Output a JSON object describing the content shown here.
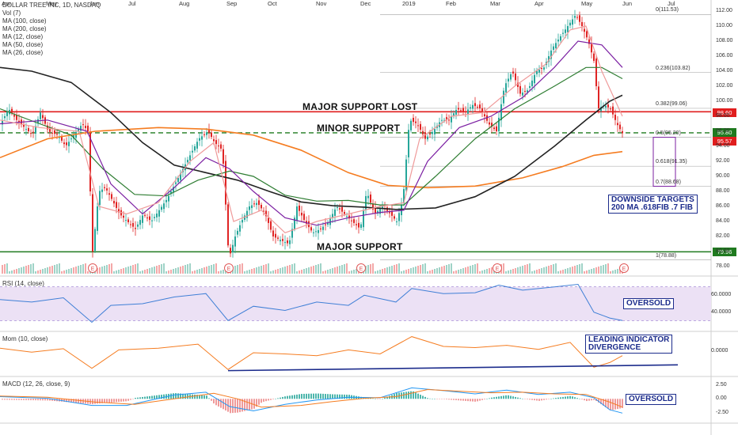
{
  "legend": {
    "title": "DOLLAR TREE INC, 1D, NASDAQ",
    "vol": "Vol (7)",
    "ma100": "MA (100, close)",
    "ma200": "MA (200, close)",
    "ma12": "MA (12, close)",
    "ma50": "MA (50, close)",
    "ma26": "MA (26, close)"
  },
  "pane_labels": {
    "rsi": "RSI (14, close)",
    "mom": "Mom (10, close)",
    "macd": "MACD (12, 26, close, 9)"
  },
  "annotations": {
    "major_support_lost": "MAJOR SUPPORT LOST",
    "minor_support": "MINOR SUPPORT",
    "major_support": "MAJOR SUPPORT",
    "downside_line1": "DOWNSIDE TARGETS",
    "downside_line2": "200 MA .618FIB .7 FIB",
    "rsi_oversold": "OVERSOLD",
    "mom_line1": "LEADING INDICATOR",
    "mom_line2": "DIVERGENCE",
    "macd_oversold": "OVERSOLD"
  },
  "price_tags": [
    {
      "value": "98.60",
      "color": "#e01e1e"
    },
    {
      "value": "95.80",
      "color": "#1f7a1f"
    },
    {
      "value": "95.57",
      "color": "#e01e1e"
    },
    {
      "value": "79.96",
      "color": "#1f7a1f"
    }
  ],
  "fib_levels": [
    {
      "label": "0(111.53)",
      "value": 111.53
    },
    {
      "label": "0.236(103.82)",
      "value": 103.82
    },
    {
      "label": "0.382(99.06)",
      "value": 99.06
    },
    {
      "label": "0.5(95.20)",
      "value": 95.2
    },
    {
      "label": "0.618(91.35)",
      "value": 91.35
    },
    {
      "label": "0.7(88.68)",
      "value": 88.68
    },
    {
      "label": "1(78.88)",
      "value": 78.88
    }
  ],
  "price_axis": [
    "112.00",
    "110.00",
    "108.00",
    "106.00",
    "104.00",
    "102.00",
    "100.00",
    "98.00",
    "96.00",
    "94.00",
    "92.00",
    "90.00",
    "88.00",
    "86.00",
    "84.00",
    "82.00",
    "80.00",
    "78.00"
  ],
  "rsi_axis": [
    "60.0000",
    "40.0000"
  ],
  "mom_axis": [
    "0.0000"
  ],
  "macd_axis": [
    "2.50",
    "0.00",
    "-2.50"
  ],
  "x_labels": [
    "Apr",
    "May",
    "Jun",
    "Jul",
    "Aug",
    "Sep",
    "Oct",
    "Nov",
    "Dec",
    "2019",
    "Feb",
    "Mar",
    "Apr",
    "May",
    "Jun",
    "Jul"
  ],
  "earnings_marker": "E",
  "chart_data": {
    "type": "candlestick",
    "symbol": "DOLLAR TREE INC",
    "interval": "1D",
    "exchange": "NASDAQ",
    "ylim": [
      77,
      113
    ],
    "horizontal_levels": {
      "major_support_lost": 98.6,
      "minor_support": 95.8,
      "major_support": 79.96
    },
    "price_path": [
      [
        0,
        97
      ],
      [
        10,
        99
      ],
      [
        20,
        97.5
      ],
      [
        30,
        96.5
      ],
      [
        40,
        95.5
      ],
      [
        50,
        98.5
      ],
      [
        60,
        96
      ],
      [
        72,
        95.5
      ],
      [
        82,
        94
      ],
      [
        92,
        95.5
      ],
      [
        103,
        97
      ],
      [
        110,
        96
      ],
      [
        116,
        80
      ],
      [
        124,
        88
      ],
      [
        132,
        88.5
      ],
      [
        140,
        87
      ],
      [
        150,
        85
      ],
      [
        160,
        84
      ],
      [
        170,
        83
      ],
      [
        180,
        85
      ],
      [
        190,
        84
      ],
      [
        200,
        85.5
      ],
      [
        210,
        87
      ],
      [
        220,
        89
      ],
      [
        230,
        91
      ],
      [
        240,
        93
      ],
      [
        250,
        95
      ],
      [
        262,
        96
      ],
      [
        270,
        94.5
      ],
      [
        280,
        93.5
      ],
      [
        288,
        79
      ],
      [
        296,
        82
      ],
      [
        304,
        84
      ],
      [
        314,
        86
      ],
      [
        324,
        86.5
      ],
      [
        334,
        85
      ],
      [
        344,
        82
      ],
      [
        354,
        81.5
      ],
      [
        364,
        81
      ],
      [
        374,
        86
      ],
      [
        384,
        84
      ],
      [
        394,
        82.5
      ],
      [
        404,
        83
      ],
      [
        414,
        84
      ],
      [
        424,
        86
      ],
      [
        434,
        85
      ],
      [
        444,
        84
      ],
      [
        454,
        83
      ],
      [
        462,
        88
      ],
      [
        472,
        85
      ],
      [
        482,
        86
      ],
      [
        492,
        85
      ],
      [
        500,
        84
      ],
      [
        508,
        87
      ],
      [
        516,
        97.5
      ],
      [
        526,
        97
      ],
      [
        536,
        95
      ],
      [
        546,
        96
      ],
      [
        556,
        97.5
      ],
      [
        566,
        97.5
      ],
      [
        576,
        99
      ],
      [
        586,
        98.5
      ],
      [
        596,
        99.5
      ],
      [
        606,
        99
      ],
      [
        616,
        97
      ],
      [
        626,
        96
      ],
      [
        636,
        102
      ],
      [
        646,
        104
      ],
      [
        656,
        101
      ],
      [
        666,
        101.5
      ],
      [
        676,
        104
      ],
      [
        686,
        104.5
      ],
      [
        696,
        107
      ],
      [
        706,
        108.5
      ],
      [
        716,
        110
      ],
      [
        726,
        111.5
      ],
      [
        734,
        110
      ],
      [
        742,
        108
      ],
      [
        750,
        105
      ],
      [
        754,
        99
      ],
      [
        762,
        99.5
      ],
      [
        770,
        99
      ],
      [
        778,
        97
      ],
      [
        786,
        95.57
      ]
    ],
    "moving_averages": [
      {
        "name": "MA (200, close)",
        "color": "#f57c20",
        "points": [
          [
            0,
            92.5
          ],
          [
            60,
            95
          ],
          [
            120,
            96
          ],
          [
            200,
            96.5
          ],
          [
            260,
            96.3
          ],
          [
            320,
            95.5
          ],
          [
            380,
            93.5
          ],
          [
            440,
            90.5
          ],
          [
            490,
            88.8
          ],
          [
            540,
            88.5
          ],
          [
            600,
            88.7
          ],
          [
            660,
            89.8
          ],
          [
            710,
            91.3
          ],
          [
            750,
            92.8
          ],
          [
            786,
            93.3
          ]
        ]
      },
      {
        "name": "MA (100, close)",
        "color": "#222222",
        "points": [
          [
            0,
            104.5
          ],
          [
            40,
            104
          ],
          [
            90,
            102.5
          ],
          [
            140,
            98.5
          ],
          [
            180,
            94.5
          ],
          [
            220,
            91.5
          ],
          [
            260,
            90.5
          ],
          [
            300,
            89.5
          ],
          [
            340,
            88
          ],
          [
            380,
            86.6
          ],
          [
            420,
            86.1
          ],
          [
            460,
            85.9
          ],
          [
            500,
            85.6
          ],
          [
            550,
            85.8
          ],
          [
            600,
            87.3
          ],
          [
            650,
            90
          ],
          [
            700,
            94
          ],
          [
            740,
            97.5
          ],
          [
            770,
            100
          ],
          [
            786,
            100.8
          ]
        ]
      },
      {
        "name": "MA (50, close)",
        "color": "#2e7d32",
        "points": [
          [
            0,
            99
          ],
          [
            50,
            97
          ],
          [
            90,
            95.5
          ],
          [
            130,
            91
          ],
          [
            170,
            87.6
          ],
          [
            210,
            87.4
          ],
          [
            250,
            89.5
          ],
          [
            290,
            90.7
          ],
          [
            320,
            90
          ],
          [
            360,
            87.5
          ],
          [
            400,
            86.7
          ],
          [
            440,
            86.8
          ],
          [
            480,
            86.2
          ],
          [
            510,
            86.2
          ],
          [
            550,
            90
          ],
          [
            600,
            95
          ],
          [
            650,
            99
          ],
          [
            700,
            102
          ],
          [
            740,
            104.5
          ],
          [
            760,
            104.5
          ],
          [
            786,
            103
          ]
        ]
      },
      {
        "name": "MA (26, close)",
        "color": "#7b1fa2",
        "points": [
          [
            0,
            97
          ],
          [
            60,
            97.5
          ],
          [
            110,
            96
          ],
          [
            140,
            89
          ],
          [
            180,
            85
          ],
          [
            220,
            88.5
          ],
          [
            260,
            92.5
          ],
          [
            290,
            91
          ],
          [
            320,
            88
          ],
          [
            360,
            84.5
          ],
          [
            400,
            83.5
          ],
          [
            440,
            84.5
          ],
          [
            480,
            85.2
          ],
          [
            510,
            85.5
          ],
          [
            540,
            92
          ],
          [
            580,
            96.5
          ],
          [
            620,
            98
          ],
          [
            660,
            100.5
          ],
          [
            700,
            104.5
          ],
          [
            730,
            108
          ],
          [
            760,
            107.5
          ],
          [
            786,
            104.5
          ]
        ]
      },
      {
        "name": "MA (12, close)",
        "color": "#ef9a9a",
        "points": [
          [
            0,
            97.5
          ],
          [
            50,
            96.5
          ],
          [
            100,
            96
          ],
          [
            125,
            86
          ],
          [
            160,
            85
          ],
          [
            200,
            86.5
          ],
          [
            240,
            92
          ],
          [
            270,
            94.5
          ],
          [
            295,
            84
          ],
          [
            330,
            85.5
          ],
          [
            360,
            82.5
          ],
          [
            400,
            84
          ],
          [
            440,
            85
          ],
          [
            480,
            86
          ],
          [
            510,
            86.5
          ],
          [
            530,
            95
          ],
          [
            570,
            98
          ],
          [
            610,
            98.5
          ],
          [
            650,
            102
          ],
          [
            690,
            105
          ],
          [
            720,
            109.5
          ],
          [
            740,
            110
          ],
          [
            760,
            104
          ],
          [
            786,
            98
          ]
        ]
      }
    ],
    "rsi": {
      "period": 14,
      "ylim": [
        20,
        80
      ],
      "band": [
        30,
        70
      ],
      "points": [
        [
          0,
          55
        ],
        [
          40,
          52
        ],
        [
          80,
          57
        ],
        [
          116,
          28
        ],
        [
          140,
          48
        ],
        [
          180,
          50
        ],
        [
          220,
          58
        ],
        [
          260,
          62
        ],
        [
          288,
          30
        ],
        [
          320,
          47
        ],
        [
          360,
          42
        ],
        [
          400,
          52
        ],
        [
          440,
          48
        ],
        [
          460,
          60
        ],
        [
          500,
          52
        ],
        [
          520,
          68
        ],
        [
          560,
          62
        ],
        [
          600,
          63
        ],
        [
          630,
          72
        ],
        [
          660,
          66
        ],
        [
          700,
          70
        ],
        [
          730,
          73
        ],
        [
          750,
          40
        ],
        [
          770,
          33
        ],
        [
          786,
          30
        ]
      ]
    },
    "momentum": {
      "period": 10,
      "points": [
        [
          0,
          0.5
        ],
        [
          40,
          -0.2
        ],
        [
          80,
          0.4
        ],
        [
          116,
          -3
        ],
        [
          150,
          0.2
        ],
        [
          200,
          0.5
        ],
        [
          250,
          1.2
        ],
        [
          288,
          -3.2
        ],
        [
          320,
          -0.3
        ],
        [
          360,
          -0.5
        ],
        [
          400,
          -0.8
        ],
        [
          440,
          0.2
        ],
        [
          480,
          -0.5
        ],
        [
          520,
          2.5
        ],
        [
          560,
          0.8
        ],
        [
          600,
          0.6
        ],
        [
          640,
          1
        ],
        [
          680,
          0.3
        ],
        [
          720,
          1.5
        ],
        [
          750,
          -2.8
        ],
        [
          770,
          -2
        ],
        [
          786,
          -0.8
        ]
      ],
      "divergence_line": [
        [
          288,
          -3.4
        ],
        [
          856,
          -2.4
        ]
      ]
    },
    "macd": {
      "params": [
        12,
        26,
        9
      ],
      "ylim": [
        -4,
        3.5
      ],
      "macd_points": [
        [
          0,
          0.4
        ],
        [
          60,
          0.1
        ],
        [
          116,
          -1.2
        ],
        [
          160,
          -1.2
        ],
        [
          220,
          0.7
        ],
        [
          260,
          1.2
        ],
        [
          290,
          -1.4
        ],
        [
          320,
          -2.2
        ],
        [
          360,
          -1
        ],
        [
          400,
          -0.2
        ],
        [
          440,
          0.3
        ],
        [
          480,
          0.2
        ],
        [
          520,
          2
        ],
        [
          560,
          1.5
        ],
        [
          600,
          0.9
        ],
        [
          640,
          1.6
        ],
        [
          680,
          0.8
        ],
        [
          720,
          1.2
        ],
        [
          750,
          0.2
        ],
        [
          770,
          -2
        ],
        [
          786,
          -2.6
        ]
      ],
      "signal_points": [
        [
          0,
          0.5
        ],
        [
          60,
          0.3
        ],
        [
          120,
          -0.6
        ],
        [
          170,
          -1
        ],
        [
          220,
          0
        ],
        [
          270,
          1
        ],
        [
          300,
          0
        ],
        [
          330,
          -1.5
        ],
        [
          380,
          -1.2
        ],
        [
          420,
          -0.5
        ],
        [
          460,
          0.1
        ],
        [
          500,
          0.4
        ],
        [
          540,
          1.7
        ],
        [
          580,
          1.4
        ],
        [
          620,
          1.1
        ],
        [
          660,
          1.2
        ],
        [
          700,
          0.9
        ],
        [
          740,
          0.8
        ],
        [
          770,
          -0.6
        ],
        [
          786,
          -1.5
        ]
      ]
    }
  }
}
